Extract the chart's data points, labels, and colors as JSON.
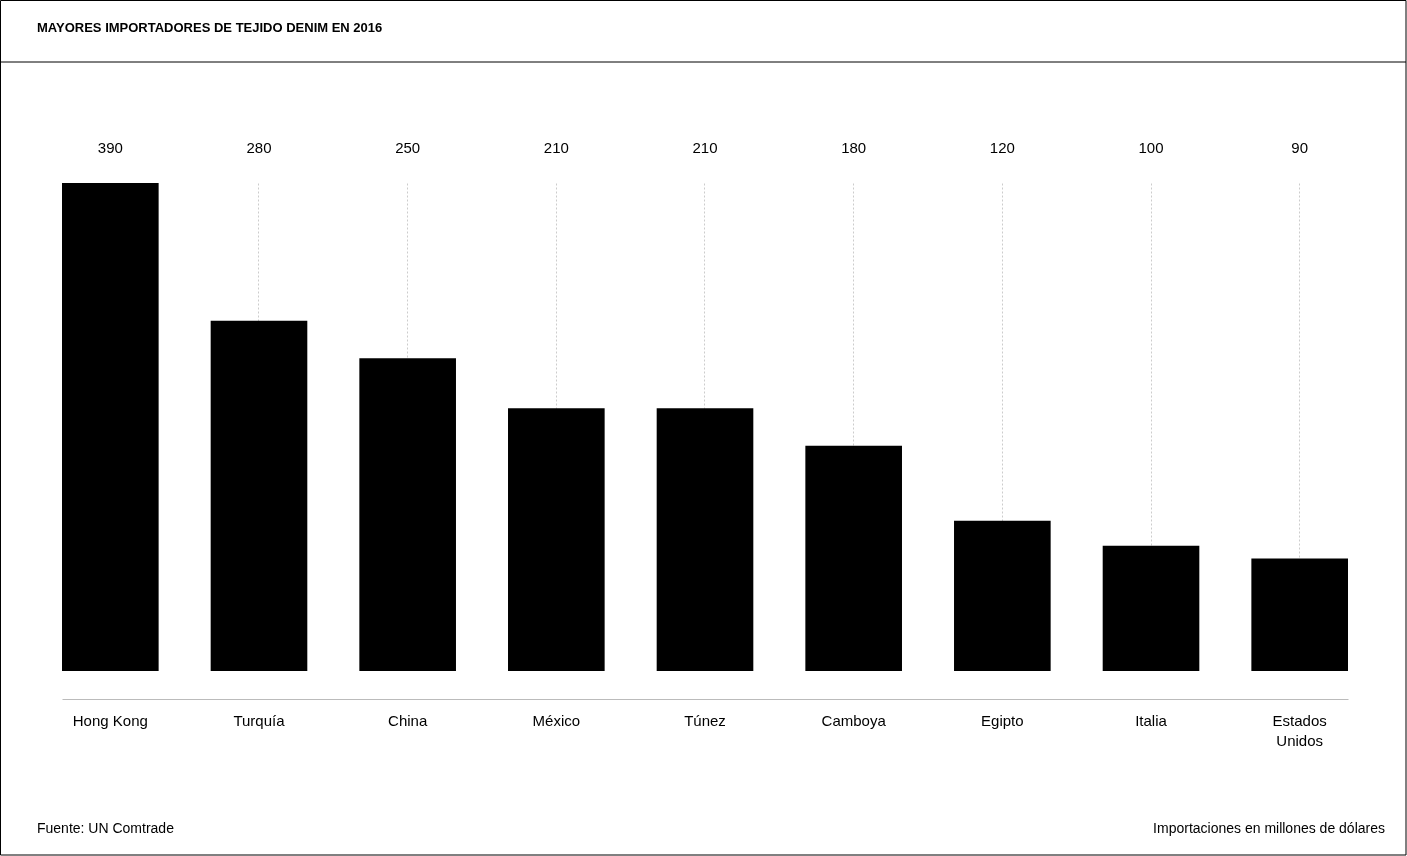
{
  "chart_data": {
    "type": "bar",
    "title": "MAYORES IMPORTADORES DE TEJIDO DENIM EN 2016",
    "categories": [
      "Hong Kong",
      "Turquía",
      "China",
      "México",
      "Túnez",
      "Camboya",
      "Egipto",
      "Italia",
      "Estados Unidos"
    ],
    "values": [
      390,
      280,
      250,
      210,
      210,
      180,
      120,
      100,
      90
    ],
    "color": "#000000",
    "data_labels": true,
    "grid": "x",
    "annotations": [
      "Fuente: UN Comtrade",
      "Importaciones en millones de dólares"
    ]
  }
}
